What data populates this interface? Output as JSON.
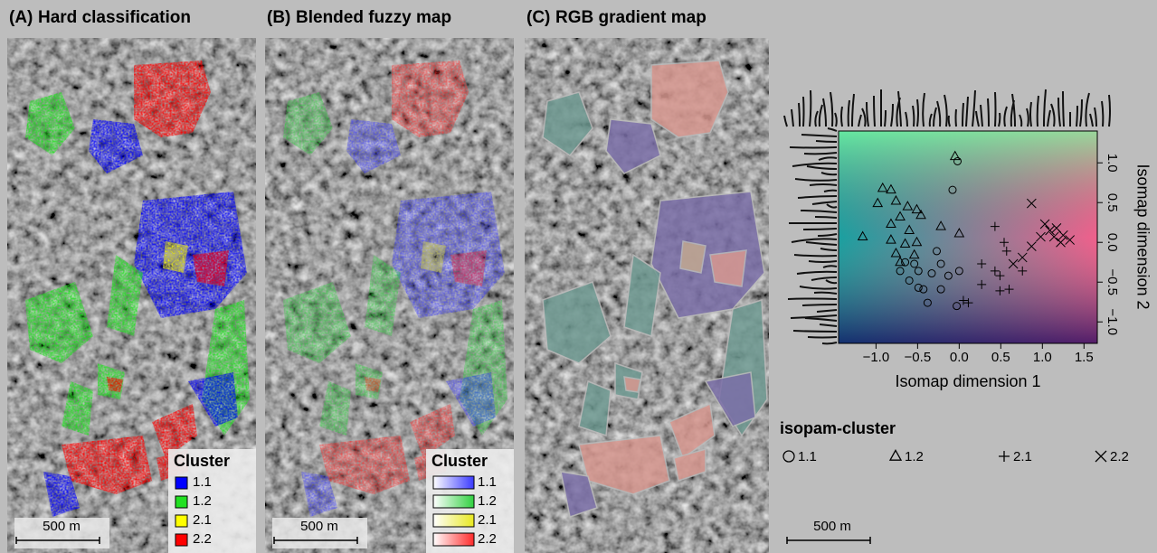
{
  "panels": [
    {
      "label": "(A)",
      "title": "Hard classification",
      "legend_title": "Cluster",
      "style": "solid",
      "legend": [
        {
          "label": "1.1",
          "color": "#0000ff"
        },
        {
          "label": "1.2",
          "color": "#22e022"
        },
        {
          "label": "2.1",
          "color": "#ffff00"
        },
        {
          "label": "2.2",
          "color": "#ff0000"
        }
      ],
      "scale": "500 m"
    },
    {
      "label": "(B)",
      "title": "Blended fuzzy map",
      "legend_title": "Cluster",
      "style": "gradient",
      "legend": [
        {
          "label": "1.1",
          "color": "#3a3aff"
        },
        {
          "label": "1.2",
          "color": "#30d040"
        },
        {
          "label": "2.1",
          "color": "#e8e820"
        },
        {
          "label": "2.2",
          "color": "#ff2a2a"
        }
      ],
      "scale": "500 m"
    },
    {
      "label": "(C)",
      "title": "RGB gradient map",
      "scale": "500 m"
    }
  ],
  "chart_data": {
    "type": "scatter",
    "xlabel": "Isomap dimension 1",
    "ylabel": "Isomap dimension 2",
    "xlim": [
      -1.45,
      1.66
    ],
    "ylim": [
      -1.27,
      1.4
    ],
    "xticks": [
      {
        "value": -1.0,
        "label": "−1.0"
      },
      {
        "value": -0.5,
        "label": "−0.5"
      },
      {
        "value": 0.0,
        "label": "0.0"
      },
      {
        "value": 0.5,
        "label": "0.5"
      },
      {
        "value": 1.0,
        "label": "1.0"
      },
      {
        "value": 1.5,
        "label": "1.5"
      }
    ],
    "yticks": [
      {
        "value": -1.0,
        "label": "−1.0"
      },
      {
        "value": -0.5,
        "label": "−0.5"
      },
      {
        "value": 0.0,
        "label": "0.0"
      },
      {
        "value": 0.5,
        "label": "0.5"
      },
      {
        "value": 1.0,
        "label": "1.0"
      }
    ],
    "legend_title": "isopam-cluster",
    "series": [
      {
        "name": "1.1",
        "marker": "circle",
        "x": [
          -0.02,
          -0.08,
          -0.22,
          -0.65,
          -0.49,
          -0.6,
          -0.43,
          -0.38,
          -0.03,
          -0.13,
          -0.33,
          -0.27,
          -0.54,
          -0.71,
          0,
          -0.22,
          -0.49
        ],
        "y": [
          1.02,
          0.66,
          -0.27,
          -0.25,
          -0.36,
          -0.48,
          -0.59,
          -0.76,
          -0.8,
          -0.42,
          -0.39,
          -0.11,
          -0.27,
          -0.36,
          -0.36,
          -0.59,
          -0.57
        ]
      },
      {
        "name": "1.2",
        "marker": "triangle",
        "x": [
          -0.05,
          -0.92,
          -0.82,
          -0.76,
          -0.62,
          -0.51,
          -0.46,
          -0.98,
          -0.71,
          -0.82,
          -0.22,
          -1.16,
          -0.6,
          -0.82,
          -0.65,
          -0.51,
          -0.76,
          -0.54,
          0,
          -0.71
        ],
        "y": [
          1.08,
          0.68,
          0.66,
          0.52,
          0.45,
          0.41,
          0.34,
          0.49,
          0.32,
          0.23,
          0.2,
          0.07,
          0.15,
          0.03,
          -0.02,
          0,
          -0.14,
          -0.16,
          0.11,
          -0.25
        ]
      },
      {
        "name": "2.1",
        "marker": "plus",
        "x": [
          0.43,
          0.54,
          0.57,
          0.27,
          0.43,
          0.49,
          0.6,
          0.49,
          0.11,
          0.05,
          0.27,
          0.76
        ],
        "y": [
          0.2,
          0,
          -0.11,
          -0.27,
          -0.36,
          -0.42,
          -0.59,
          -0.61,
          -0.76,
          -0.73,
          -0.53,
          -0.36
        ]
      },
      {
        "name": "2.2",
        "marker": "cross",
        "x": [
          0.87,
          1.03,
          1.09,
          1.17,
          1.25,
          1.33,
          1.22,
          1.14,
          0.87,
          0.76,
          0.65,
          0.98
        ],
        "y": [
          0.49,
          0.23,
          0.15,
          0.18,
          0.09,
          0.03,
          0,
          0.07,
          -0.05,
          -0.19,
          -0.27,
          0.07
        ]
      }
    ]
  }
}
